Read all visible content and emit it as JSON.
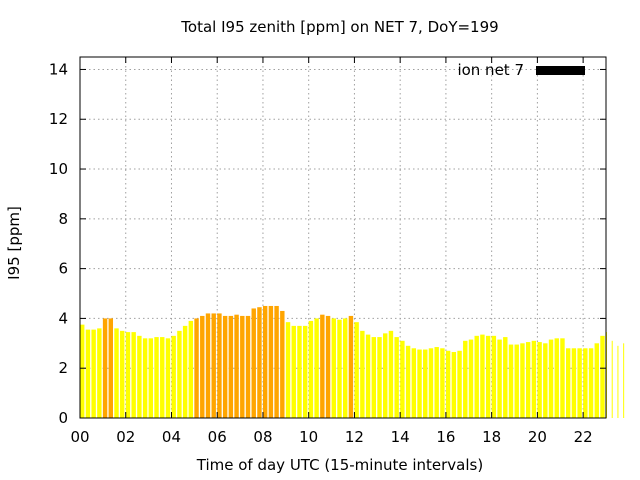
{
  "chart_data": {
    "type": "bar",
    "title": "Total I95 zenith [ppm] on NET 7, DoY=199",
    "xlabel": "Time of day UTC (15-minute intervals)",
    "ylabel": "I95 [ppm]",
    "xlim": [
      0,
      23
    ],
    "ylim": [
      0,
      14.5
    ],
    "xticks": [
      "00",
      "02",
      "04",
      "06",
      "08",
      "10",
      "12",
      "14",
      "16",
      "18",
      "20",
      "22"
    ],
    "yticks": [
      "0",
      "2",
      "4",
      "6",
      "8",
      "10",
      "12",
      "14"
    ],
    "grid": true,
    "legend": {
      "label": "ion net 7",
      "position": "top-right",
      "color": "#000000"
    },
    "colors": {
      "normal": "#ffff00",
      "elevated": "#ffa500"
    },
    "interval_hours": 0.25,
    "series": [
      {
        "name": "ion net 7",
        "values": [
          3.75,
          3.55,
          3.55,
          3.6,
          4.0,
          4.0,
          3.6,
          3.5,
          3.45,
          3.45,
          3.3,
          3.2,
          3.2,
          3.25,
          3.25,
          3.2,
          3.3,
          3.5,
          3.7,
          3.9,
          4.0,
          4.1,
          4.2,
          4.2,
          4.2,
          4.1,
          4.1,
          4.15,
          4.1,
          4.1,
          4.4,
          4.45,
          4.5,
          4.5,
          4.5,
          4.3,
          3.85,
          3.7,
          3.7,
          3.7,
          3.9,
          4.0,
          4.15,
          4.1,
          4.0,
          3.95,
          4.0,
          4.1,
          3.85,
          3.5,
          3.35,
          3.25,
          3.25,
          3.4,
          3.5,
          3.25,
          3.1,
          2.9,
          2.8,
          2.75,
          2.75,
          2.8,
          2.85,
          2.8,
          2.7,
          2.65,
          2.7,
          3.1,
          3.15,
          3.3,
          3.35,
          3.3,
          3.3,
          3.15,
          3.25,
          2.95,
          2.95,
          3.0,
          3.05,
          3.1,
          3.05,
          3.0,
          3.15,
          3.2,
          3.2,
          2.8,
          2.8,
          2.8,
          2.8,
          2.8,
          3.0,
          3.3,
          3.45,
          3.1,
          2.9,
          3.0
        ],
        "levels": [
          "normal",
          "normal",
          "normal",
          "normal",
          "elevated",
          "elevated",
          "normal",
          "normal",
          "normal",
          "normal",
          "normal",
          "normal",
          "normal",
          "normal",
          "normal",
          "normal",
          "normal",
          "normal",
          "normal",
          "normal",
          "elevated",
          "elevated",
          "elevated",
          "elevated",
          "elevated",
          "elevated",
          "elevated",
          "elevated",
          "elevated",
          "elevated",
          "elevated",
          "elevated",
          "elevated",
          "elevated",
          "elevated",
          "elevated",
          "normal",
          "normal",
          "normal",
          "normal",
          "normal",
          "normal",
          "elevated",
          "elevated",
          "normal",
          "normal",
          "normal",
          "elevated",
          "normal",
          "normal",
          "normal",
          "normal",
          "normal",
          "normal",
          "normal",
          "normal",
          "normal",
          "normal",
          "normal",
          "normal",
          "normal",
          "normal",
          "normal",
          "normal",
          "normal",
          "normal",
          "normal",
          "normal",
          "normal",
          "normal",
          "normal",
          "normal",
          "normal",
          "normal",
          "normal",
          "normal",
          "normal",
          "normal",
          "normal",
          "normal",
          "normal",
          "normal",
          "normal",
          "normal",
          "normal",
          "normal",
          "normal",
          "normal",
          "normal",
          "normal",
          "normal",
          "normal",
          "normal",
          "normal",
          "normal",
          "normal"
        ]
      }
    ]
  }
}
